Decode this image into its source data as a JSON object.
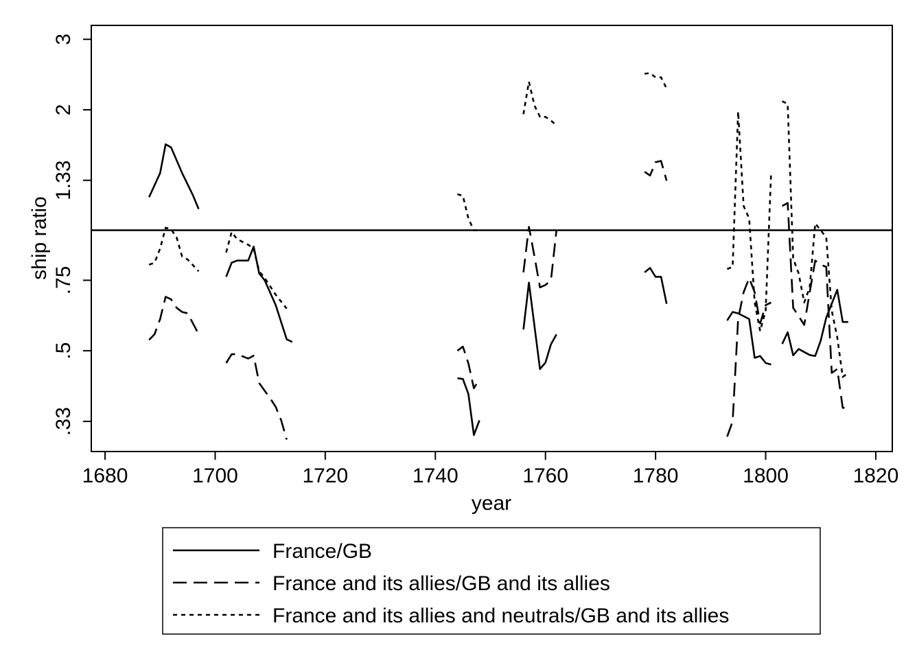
{
  "chart_data": {
    "type": "line",
    "xlabel": "year",
    "ylabel": "ship ratio",
    "y_scale": "log",
    "xlim": [
      1677.5,
      1823
    ],
    "ylim": [
      0.28,
      3.25
    ],
    "x_ticks": [
      1680,
      1700,
      1720,
      1740,
      1760,
      1780,
      1800,
      1820
    ],
    "y_ticks": [
      {
        "value": 0.333,
        "label": ".33"
      },
      {
        "value": 0.5,
        "label": ".5"
      },
      {
        "value": 0.75,
        "label": ".75"
      },
      {
        "value": 1.333,
        "label": "1.33"
      },
      {
        "value": 2,
        "label": "2"
      },
      {
        "value": 3,
        "label": "3"
      }
    ],
    "reference_line": 1,
    "grid": false,
    "legend_position": "bottom",
    "series": [
      {
        "name": "France/GB",
        "dash": "solid",
        "segments": [
          [
            [
              1688,
              1.21
            ],
            [
              1690,
              1.39
            ],
            [
              1691,
              1.64
            ],
            [
              1692,
              1.61
            ],
            [
              1694,
              1.39
            ],
            [
              1696,
              1.22
            ],
            [
              1697,
              1.13
            ]
          ],
          [
            [
              1702,
              0.765
            ],
            [
              1703,
              0.83
            ],
            [
              1704,
              0.84
            ],
            [
              1706,
              0.84
            ],
            [
              1707,
              0.91
            ],
            [
              1708,
              0.78
            ],
            [
              1709,
              0.75
            ],
            [
              1711,
              0.65
            ],
            [
              1713,
              0.534
            ],
            [
              1714,
              0.526
            ]
          ],
          [
            [
              1744,
              0.427
            ],
            [
              1745,
              0.425
            ],
            [
              1746,
              0.39
            ],
            [
              1747,
              0.308
            ],
            [
              1748,
              0.335
            ]
          ],
          [
            [
              1756,
              0.565
            ],
            [
              1757,
              0.74
            ],
            [
              1759,
              0.45
            ],
            [
              1760,
              0.467
            ],
            [
              1761,
              0.519
            ],
            [
              1762,
              0.549
            ]
          ],
          [
            [
              1778,
              0.785
            ],
            [
              1779,
              0.805
            ],
            [
              1780,
              0.765
            ],
            [
              1781,
              0.765
            ],
            [
              1782,
              0.655
            ]
          ],
          [
            [
              1793,
              0.595
            ],
            [
              1794,
              0.625
            ],
            [
              1795,
              0.62
            ],
            [
              1797,
              0.6
            ],
            [
              1798,
              0.48
            ],
            [
              1799,
              0.485
            ],
            [
              1800,
              0.466
            ],
            [
              1801,
              0.462
            ]
          ],
          [
            [
              1803,
              0.52
            ],
            [
              1804,
              0.556
            ],
            [
              1805,
              0.487
            ],
            [
              1806,
              0.505
            ],
            [
              1808,
              0.488
            ],
            [
              1809,
              0.485
            ],
            [
              1810,
              0.53
            ],
            [
              1811,
              0.605
            ],
            [
              1813,
              0.71
            ],
            [
              1814,
              0.59
            ],
            [
              1815,
              0.59
            ]
          ]
        ]
      },
      {
        "name": "France and its allies/GB and its allies",
        "dash": "long",
        "segments": [
          [
            [
              1688,
              0.532
            ],
            [
              1689,
              0.55
            ],
            [
              1690,
              0.6
            ],
            [
              1691,
              0.682
            ],
            [
              1692,
              0.672
            ],
            [
              1693,
              0.64
            ],
            [
              1694,
              0.625
            ],
            [
              1695,
              0.62
            ],
            [
              1697,
              0.55
            ]
          ],
          [
            [
              1702,
              0.466
            ],
            [
              1703,
              0.49
            ],
            [
              1704,
              0.49
            ],
            [
              1706,
              0.478
            ],
            [
              1707,
              0.486
            ],
            [
              1708,
              0.415
            ],
            [
              1710,
              0.38
            ],
            [
              1711,
              0.362
            ],
            [
              1712,
              0.335
            ],
            [
              1713,
              0.3
            ]
          ],
          [
            [
              1744,
              0.5
            ],
            [
              1745,
              0.512
            ],
            [
              1746,
              0.465
            ],
            [
              1747,
              0.403
            ],
            [
              1748,
              0.425
            ]
          ],
          [
            [
              1756,
              0.785
            ],
            [
              1757,
              1.02
            ],
            [
              1758,
              0.86
            ],
            [
              1759,
              0.72
            ],
            [
              1760,
              0.73
            ],
            [
              1761,
              0.75
            ],
            [
              1762,
              1.0
            ]
          ],
          [
            [
              1778,
              1.4
            ],
            [
              1779,
              1.37
            ],
            [
              1780,
              1.48
            ],
            [
              1781,
              1.49
            ],
            [
              1782,
              1.33
            ]
          ],
          [
            [
              1793,
              0.305
            ],
            [
              1794,
              0.333
            ],
            [
              1795,
              0.6
            ],
            [
              1796,
              0.7
            ],
            [
              1797,
              0.76
            ],
            [
              1798,
              0.7
            ],
            [
              1799,
              0.585
            ],
            [
              1800,
              0.65
            ],
            [
              1801,
              0.66
            ]
          ],
          [
            [
              1803,
              1.15
            ],
            [
              1804,
              1.17
            ],
            [
              1805,
              0.64
            ],
            [
              1806,
              0.61
            ],
            [
              1807,
              0.58
            ],
            [
              1808,
              0.7
            ],
            [
              1809,
              0.84
            ],
            [
              1810,
              0.82
            ],
            [
              1811,
              0.81
            ],
            [
              1812,
              0.44
            ],
            [
              1813,
              0.45
            ],
            [
              1814,
              0.36
            ],
            [
              1815,
              0.36
            ]
          ]
        ]
      },
      {
        "name": "France and its allies and neutrals/GB and its allies",
        "dash": "short",
        "segments": [
          [
            [
              1688,
              0.82
            ],
            [
              1689,
              0.83
            ],
            [
              1690,
              0.9
            ],
            [
              1691,
              1.015
            ],
            [
              1692,
              1.005
            ],
            [
              1693,
              0.96
            ],
            [
              1694,
              0.86
            ],
            [
              1695,
              0.845
            ],
            [
              1697,
              0.79
            ]
          ],
          [
            [
              1702,
              0.88
            ],
            [
              1703,
              0.99
            ],
            [
              1704,
              0.95
            ],
            [
              1706,
              0.92
            ],
            [
              1707,
              0.9
            ],
            [
              1708,
              0.79
            ],
            [
              1709,
              0.76
            ],
            [
              1711,
              0.69
            ],
            [
              1713,
              0.637
            ]
          ],
          [
            [
              1744,
              1.23
            ],
            [
              1745,
              1.22
            ],
            [
              1746,
              1.07
            ],
            [
              1747,
              1.0
            ],
            [
              1748,
              1.0
            ]
          ],
          [
            [
              1756,
              1.95
            ],
            [
              1757,
              2.35
            ],
            [
              1758,
              2.05
            ],
            [
              1759,
              1.92
            ],
            [
              1760,
              1.92
            ],
            [
              1761,
              1.88
            ],
            [
              1762,
              1.83
            ]
          ],
          [
            [
              1778,
              2.46
            ],
            [
              1779,
              2.47
            ],
            [
              1780,
              2.41
            ],
            [
              1781,
              2.41
            ],
            [
              1782,
              2.26
            ]
          ],
          [
            [
              1793,
              0.8
            ],
            [
              1794,
              0.81
            ],
            [
              1795,
              1.98
            ],
            [
              1796,
              1.15
            ],
            [
              1797,
              1.07
            ],
            [
              1798,
              0.66
            ],
            [
              1799,
              0.56
            ],
            [
              1800,
              0.63
            ],
            [
              1801,
              1.4
            ]
          ],
          [
            [
              1803,
              2.1
            ],
            [
              1804,
              2.07
            ],
            [
              1805,
              0.85
            ],
            [
              1806,
              0.78
            ],
            [
              1807,
              0.66
            ],
            [
              1808,
              0.72
            ],
            [
              1809,
              1.04
            ],
            [
              1810,
              1.0
            ],
            [
              1811,
              0.96
            ],
            [
              1812,
              0.63
            ],
            [
              1813,
              0.54
            ],
            [
              1814,
              0.43
            ],
            [
              1815,
              0.44
            ]
          ]
        ]
      }
    ]
  }
}
